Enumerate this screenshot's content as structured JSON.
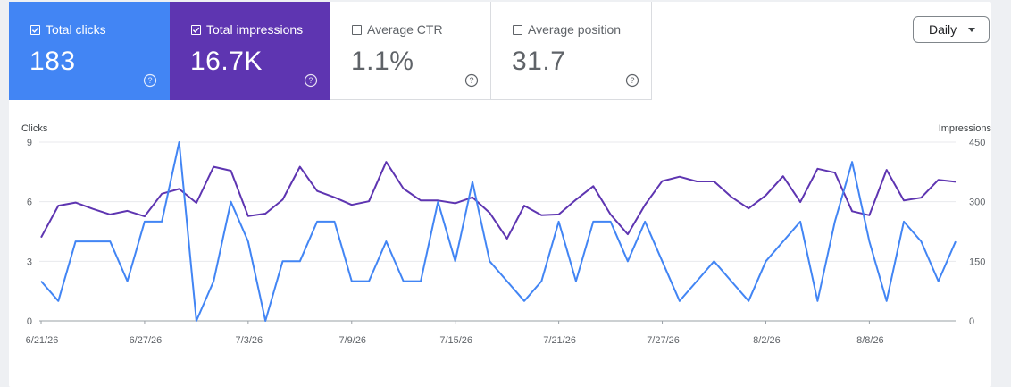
{
  "metrics": [
    {
      "key": "clicks",
      "label": "Total clicks",
      "value": "183",
      "checked": true,
      "color": "#4285f4"
    },
    {
      "key": "impressions",
      "label": "Total impressions",
      "value": "16.7K",
      "checked": true,
      "color": "#5e35b1"
    },
    {
      "key": "ctr",
      "label": "Average CTR",
      "value": "1.1%",
      "checked": false
    },
    {
      "key": "position",
      "label": "Average position",
      "value": "31.7",
      "checked": false
    }
  ],
  "period_selector": {
    "label": "Daily"
  },
  "chart_data": {
    "type": "line",
    "x_tick_labels": [
      "6/21/26",
      "6/27/26",
      "7/3/26",
      "7/9/26",
      "7/15/26",
      "7/21/26",
      "7/27/26",
      "8/2/26",
      "8/8/26"
    ],
    "y_left": {
      "label": "Clicks",
      "ticks": [
        0,
        3,
        6,
        9
      ],
      "range": [
        0,
        9
      ]
    },
    "y_right": {
      "label": "Impressions",
      "ticks": [
        0,
        150,
        300,
        450
      ],
      "range": [
        0,
        450
      ]
    },
    "grid": true,
    "series": [
      {
        "name": "Clicks",
        "axis": "left",
        "color": "#4285f4",
        "values": [
          2,
          1,
          4,
          4,
          4,
          2,
          5,
          5,
          9,
          0,
          2,
          6,
          4,
          0,
          3,
          3,
          5,
          5,
          2,
          2,
          4,
          2,
          2,
          6,
          3,
          7,
          3,
          2,
          1,
          2,
          5,
          2,
          5,
          5,
          3,
          5,
          3,
          1,
          2,
          3,
          2,
          1,
          3,
          4,
          5,
          1,
          5,
          8,
          4,
          1,
          5,
          4,
          2,
          4
        ]
      },
      {
        "name": "Impressions",
        "axis": "right",
        "color": "#5e35b1",
        "values": [
          210,
          290,
          298,
          282,
          268,
          277,
          263,
          320,
          332,
          297,
          388,
          378,
          264,
          270,
          305,
          388,
          327,
          311,
          292,
          301,
          400,
          333,
          303,
          303,
          296,
          311,
          272,
          207,
          290,
          266,
          268,
          305,
          339,
          268,
          218,
          292,
          352,
          363,
          351,
          351,
          312,
          283,
          316,
          364,
          299,
          383,
          373,
          276,
          266,
          380,
          303,
          310,
          355,
          350
        ]
      }
    ]
  }
}
